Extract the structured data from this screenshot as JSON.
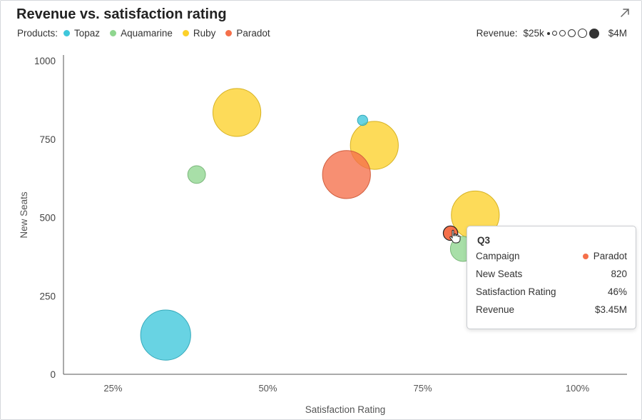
{
  "chart_data": {
    "type": "bubble",
    "title": "Revenue vs. satisfaction rating",
    "xlabel": "Satisfaction Rating",
    "ylabel": "New Seats",
    "xlim": [
      0.17,
      1.08
    ],
    "ylim": [
      0,
      1000
    ],
    "x_ticks": [
      0.25,
      0.5,
      0.75,
      1.0
    ],
    "x_tick_labels": [
      "25%",
      "50%",
      "75%",
      "100%"
    ],
    "y_ticks": [
      0,
      250,
      500,
      750,
      1000
    ],
    "y_tick_labels": [
      "0",
      "250",
      "500",
      "750",
      "1000"
    ],
    "legend_label": "Products:",
    "series": [
      {
        "name": "Topaz",
        "color": "#3ec7db",
        "points": [
          {
            "x": 0.335,
            "y": 125,
            "revenue": 3600000
          },
          {
            "x": 0.653,
            "y": 810,
            "revenue": 150000
          }
        ]
      },
      {
        "name": "Aquamarine",
        "color": "#8fd68f",
        "points": [
          {
            "x": 0.385,
            "y": 637,
            "revenue": 450000
          },
          {
            "x": 0.815,
            "y": 400,
            "revenue": 900000
          }
        ]
      },
      {
        "name": "Ruby",
        "color": "#fcd12a",
        "points": [
          {
            "x": 0.45,
            "y": 835,
            "revenue": 3300000
          },
          {
            "x": 0.672,
            "y": 730,
            "revenue": 3300000
          },
          {
            "x": 0.835,
            "y": 508,
            "revenue": 3300000
          }
        ]
      },
      {
        "name": "Paradot",
        "color": "#f5704a",
        "points": [
          {
            "x": 0.627,
            "y": 637,
            "revenue": 3300000
          },
          {
            "x": 0.795,
            "y": 450,
            "revenue": 300000
          }
        ]
      }
    ]
  },
  "size_legend": {
    "label": "Revenue:",
    "min_label": "$25k",
    "max_label": "$4M"
  },
  "tooltip": {
    "title": "Q3",
    "rows": [
      {
        "label": "Campaign",
        "value": "Paradot",
        "dot_color": "#f5704a"
      },
      {
        "label": "New Seats",
        "value": "820"
      },
      {
        "label": "Satisfaction Rating",
        "value": "46%"
      },
      {
        "label": "Revenue",
        "value": "$3.45M"
      }
    ]
  },
  "icons": {
    "expand": "expand-arrow-icon",
    "cursor": "hand-pointer-icon"
  }
}
